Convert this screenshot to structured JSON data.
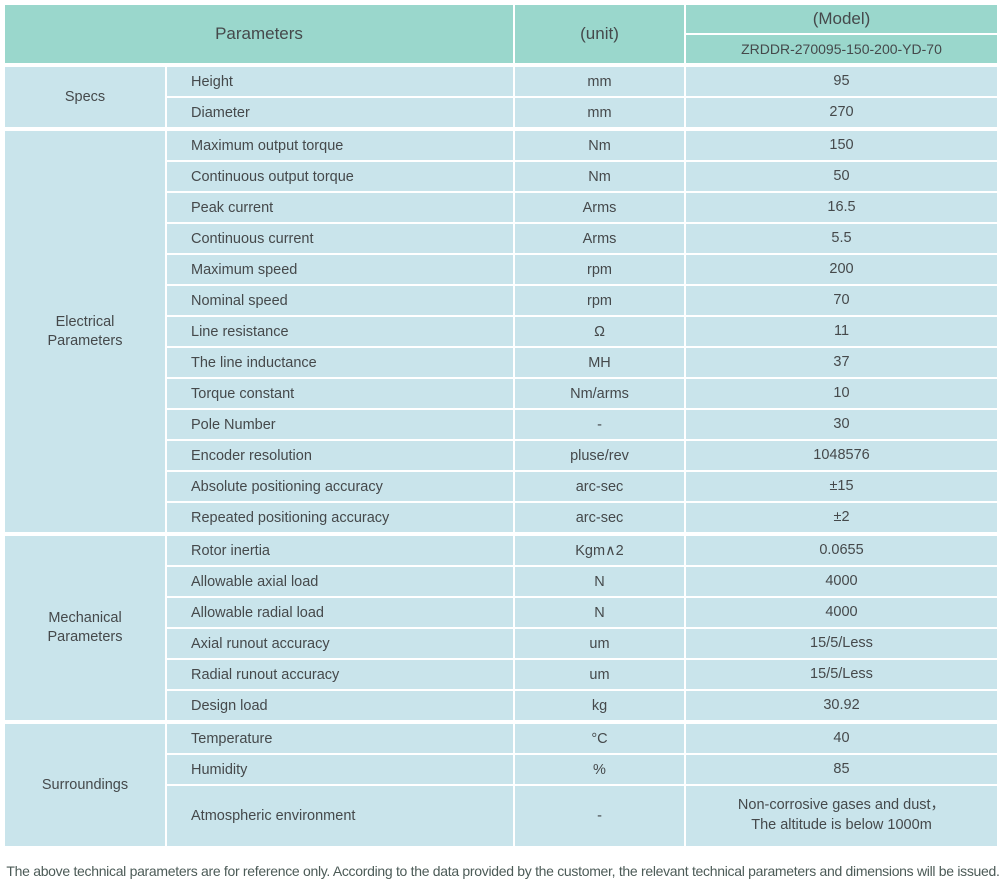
{
  "colors": {
    "header-bg": "#9ad7cc",
    "cell-bg": "#c9e4eb",
    "text": "#45494b",
    "footer-text": "#4c5b57",
    "border": "#ffffff"
  },
  "table": {
    "header": {
      "parameters_label": "Parameters",
      "unit_label": "(unit)",
      "model_label": "(Model)",
      "model_value": "ZRDDR-270095-150-200-YD-70"
    },
    "sections": [
      {
        "id": "specs",
        "group": "Specs",
        "rows": [
          {
            "name": "Height",
            "unit": "mm",
            "value": "95"
          },
          {
            "name": "Diameter",
            "unit": "mm",
            "value": "270"
          }
        ]
      },
      {
        "id": "electrical-parameters",
        "group": "Electrical Parameters",
        "rows": [
          {
            "name": "Maximum output torque",
            "unit": "Nm",
            "value": "150"
          },
          {
            "name": "Continuous output torque",
            "unit": "Nm",
            "value": "50"
          },
          {
            "name": "Peak current",
            "unit": "Arms",
            "value": "16.5"
          },
          {
            "name": "Continuous current",
            "unit": "Arms",
            "value": "5.5"
          },
          {
            "name": "Maximum speed",
            "unit": "rpm",
            "value": "200"
          },
          {
            "name": "Nominal speed",
            "unit": "rpm",
            "value": "70"
          },
          {
            "name": "Line resistance",
            "unit": "Ω",
            "value": "11"
          },
          {
            "name": "The line inductance",
            "unit": "MH",
            "value": "37"
          },
          {
            "name": "Torque constant",
            "unit": "Nm/arms",
            "value": "10"
          },
          {
            "name": "Pole Number",
            "unit": "-",
            "value": "30"
          },
          {
            "name": "Encoder resolution",
            "unit": "pluse/rev",
            "value": "1048576"
          },
          {
            "name": "Absolute positioning accuracy",
            "unit": "arc-sec",
            "value": "±15"
          },
          {
            "name": "Repeated positioning accuracy",
            "unit": "arc-sec",
            "value": "±2"
          }
        ]
      },
      {
        "id": "mechanical-parameters",
        "group": "Mechanical Parameters",
        "rows": [
          {
            "name": "Rotor inertia",
            "unit": "Kgm∧2",
            "value": "0.0655"
          },
          {
            "name": "Allowable axial load",
            "unit": "N",
            "value": "4000"
          },
          {
            "name": "Allowable radial load",
            "unit": "N",
            "value": "4000"
          },
          {
            "name": "Axial runout accuracy",
            "unit": "um",
            "value": "15/5/Less"
          },
          {
            "name": "Radial runout accuracy",
            "unit": "um",
            "value": "15/5/Less"
          },
          {
            "name": "Design load",
            "unit": "kg",
            "value": "30.92"
          }
        ]
      },
      {
        "id": "surroundings",
        "group": "Surroundings",
        "rows": [
          {
            "name": "Temperature",
            "unit": "°C",
            "value": "40"
          },
          {
            "name": "Humidity",
            "unit": "%",
            "value": "85"
          },
          {
            "name": "Atmospheric environment",
            "unit": "-",
            "value": "Non-corrosive gases and dust，\nThe altitude is below 1000m",
            "tall": true
          }
        ]
      }
    ],
    "footer_note": "The above technical parameters are for reference only. According to the data provided by the customer, the relevant technical parameters and dimensions will be issued."
  }
}
